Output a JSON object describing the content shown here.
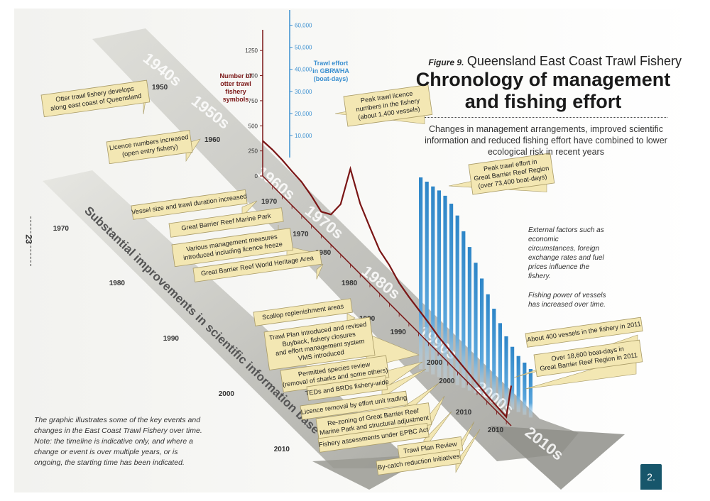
{
  "header": {
    "figure_label": "Figure 9.",
    "subtitle": "Queensland East Coast Trawl Fishery",
    "title_line1": "Chronology of management",
    "title_line2": "and fishing effort",
    "intro": "Changes in management arrangements, improved scientific information and reduced fishing effort have combined to lower ecological risk in recent years"
  },
  "page_number": "23",
  "page_badge": "2.",
  "note": "The graphic illustrates some of the key events and changes in the East Coast Trawl Fishery over time. Note: the timeline is indicative only, and where a change or event is over multiple years, or is ongoing, the starting time has been indicated.",
  "external_factors": "External factors such as economic circumstances, foreign exchange rates and fuel prices influence the fishery.",
  "fishing_power": "Fishing power of vessels has increased over time.",
  "decades": [
    "1940s",
    "1950s",
    "1960s",
    "1970s",
    "1980s",
    "1990s",
    "2000s",
    "2010s"
  ],
  "science_band_label": "Substantial improvements in scientific information base",
  "colors": {
    "licence_line": "#7a1515",
    "effort_bar": "#2e86c8",
    "effort_axis": "#3a8fd0",
    "callout_fill": "#f3e7b3",
    "callout_stroke": "#a89a66",
    "band": "#9b9b94"
  },
  "events_left": [
    {
      "text": [
        "Otter trawl fishery develops",
        "along east coast of Queensland"
      ],
      "year": "1950"
    },
    {
      "text": [
        "Licence numbers increased",
        "(open entry fishery)"
      ],
      "year": "1960"
    },
    {
      "text": [
        "Vessel size and trawl duration increased"
      ],
      "year": "1970"
    },
    {
      "text": [
        "Great Barrier Reef Marine Park"
      ],
      "year": ""
    },
    {
      "text": [
        "Various management measures",
        "introduced including licence freeze"
      ],
      "year": "1980"
    },
    {
      "text": [
        "Great Barrier Reef World Heritage Area"
      ],
      "year": ""
    },
    {
      "text": [
        "Scallop replenishment areas"
      ],
      "year": "1990"
    },
    {
      "text": [
        "Trawl Plan introduced and revised",
        "Buyback, fishery closures",
        "and effort management system",
        "VMS introduced"
      ],
      "year": ""
    },
    {
      "text": [
        "Permitted species review",
        "(removal of sharks and some others)"
      ],
      "year": "2000"
    },
    {
      "text": [
        "TEDs and BRDs fishery-wide"
      ],
      "year": ""
    },
    {
      "text": [
        "Licence removal by effort unit trading"
      ],
      "year": ""
    },
    {
      "text": [
        "Re-zoning of Great Barrier Reef",
        "Marine Park and structural adjustment"
      ],
      "year": ""
    },
    {
      "text": [
        "Fishery assessments under EPBC Act"
      ],
      "year": "2010"
    },
    {
      "text": [
        "Trawl Plan Review"
      ],
      "year": ""
    },
    {
      "text": [
        "By-catch reduction initiatives"
      ],
      "year": ""
    }
  ],
  "band_years": [
    "1970",
    "1980",
    "1990",
    "2000",
    "2010"
  ],
  "chart_data": {
    "type": "line",
    "licence_axis": {
      "label": "Number of otter trawl fishery symbols",
      "ticks": [
        "0",
        "250",
        "500",
        "750",
        "1000",
        "1250"
      ],
      "ylim": [
        0,
        1400
      ]
    },
    "effort_axis": {
      "label": "Trawl effort in GBRWHA (boat-days)",
      "ticks": [
        "10,000",
        "20,000",
        "30,000",
        "40,000",
        "50,000",
        "60,000"
      ],
      "ylim": [
        0,
        65000
      ]
    },
    "licences": {
      "name": "Number of otter trawl fishery symbols",
      "x": [
        1960,
        1962,
        1964,
        1966,
        1968,
        1970,
        1972,
        1974,
        1976,
        1978,
        1980,
        1982,
        1984,
        1986,
        1988,
        1990,
        1992,
        1994,
        1996,
        1998,
        2000,
        2002,
        2004,
        2006,
        2008,
        2010,
        2011
      ],
      "y": [
        350,
        360,
        355,
        340,
        330,
        290,
        230,
        300,
        500,
        950,
        700,
        560,
        430,
        380,
        300,
        260,
        230,
        200,
        160,
        140,
        120,
        100,
        80,
        60,
        50,
        40,
        400
      ]
    },
    "effort": {
      "name": "Trawl effort in GBRWHA (boat-days)",
      "x": [
        1993,
        1994,
        1995,
        1996,
        1997,
        1998,
        1999,
        2000,
        2001,
        2002,
        2003,
        2004,
        2005,
        2006,
        2007,
        2008,
        2009,
        2010,
        2011
      ],
      "y": [
        73400,
        72800,
        72000,
        71500,
        70500,
        68500,
        65000,
        60000,
        55000,
        50000,
        45000,
        40000,
        35500,
        31000,
        27000,
        24000,
        21500,
        20000,
        18600
      ]
    },
    "annotations": [
      {
        "text": [
          "Peak trawl licence",
          "numbers in the fishery",
          "(about 1,400 vessels)"
        ]
      },
      {
        "text": [
          "Peak trawl effort in",
          "Great Barrier Reef Region",
          "(over 73,400 boat-days)"
        ]
      },
      {
        "text": [
          "About 400 vessels in the fishery in 2011"
        ]
      },
      {
        "text": [
          "Over 18,600 boat-days in",
          "Great Barrier Reef Region in 2011"
        ]
      }
    ],
    "chart_years": [
      "1970",
      "1980",
      "1990",
      "2000",
      "2010"
    ]
  }
}
